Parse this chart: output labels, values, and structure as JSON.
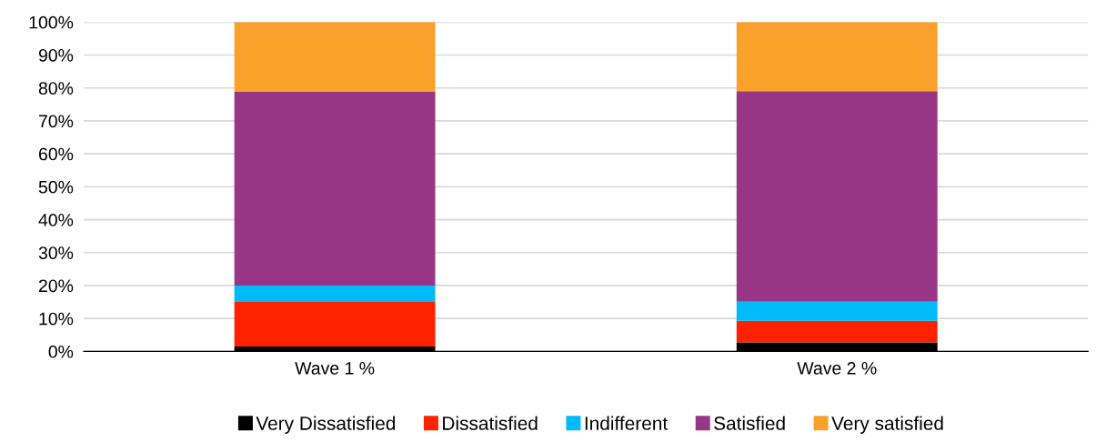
{
  "chart_data": {
    "type": "bar",
    "stacked": true,
    "categories": [
      "Wave 1 %",
      "Wave 2 %"
    ],
    "series": [
      {
        "name": "Very Dissatisfied",
        "color": "#000000",
        "values": [
          1.5,
          2.7
        ]
      },
      {
        "name": "Dissatisfied",
        "color": "#ff2200",
        "values": [
          13.5,
          6.6
        ]
      },
      {
        "name": "Indifferent",
        "color": "#00bbf9",
        "values": [
          5.0,
          5.8
        ]
      },
      {
        "name": "Satisfied",
        "color": "#983686",
        "values": [
          58.8,
          63.9
        ]
      },
      {
        "name": "Very satisfied",
        "color": "#f9a12a",
        "values": [
          21.2,
          21.0
        ]
      }
    ],
    "ylim": [
      0,
      100
    ],
    "yticks": [
      {
        "value": 0,
        "label": "0%"
      },
      {
        "value": 10,
        "label": "10%"
      },
      {
        "value": 20,
        "label": "20%"
      },
      {
        "value": 30,
        "label": "30%"
      },
      {
        "value": 40,
        "label": "40%"
      },
      {
        "value": 50,
        "label": "50%"
      },
      {
        "value": 60,
        "label": "60%"
      },
      {
        "value": 70,
        "label": "70%"
      },
      {
        "value": 80,
        "label": "80%"
      },
      {
        "value": 90,
        "label": "90%"
      },
      {
        "value": 100,
        "label": "100%"
      }
    ],
    "grid": "y",
    "legend": "bottom"
  }
}
